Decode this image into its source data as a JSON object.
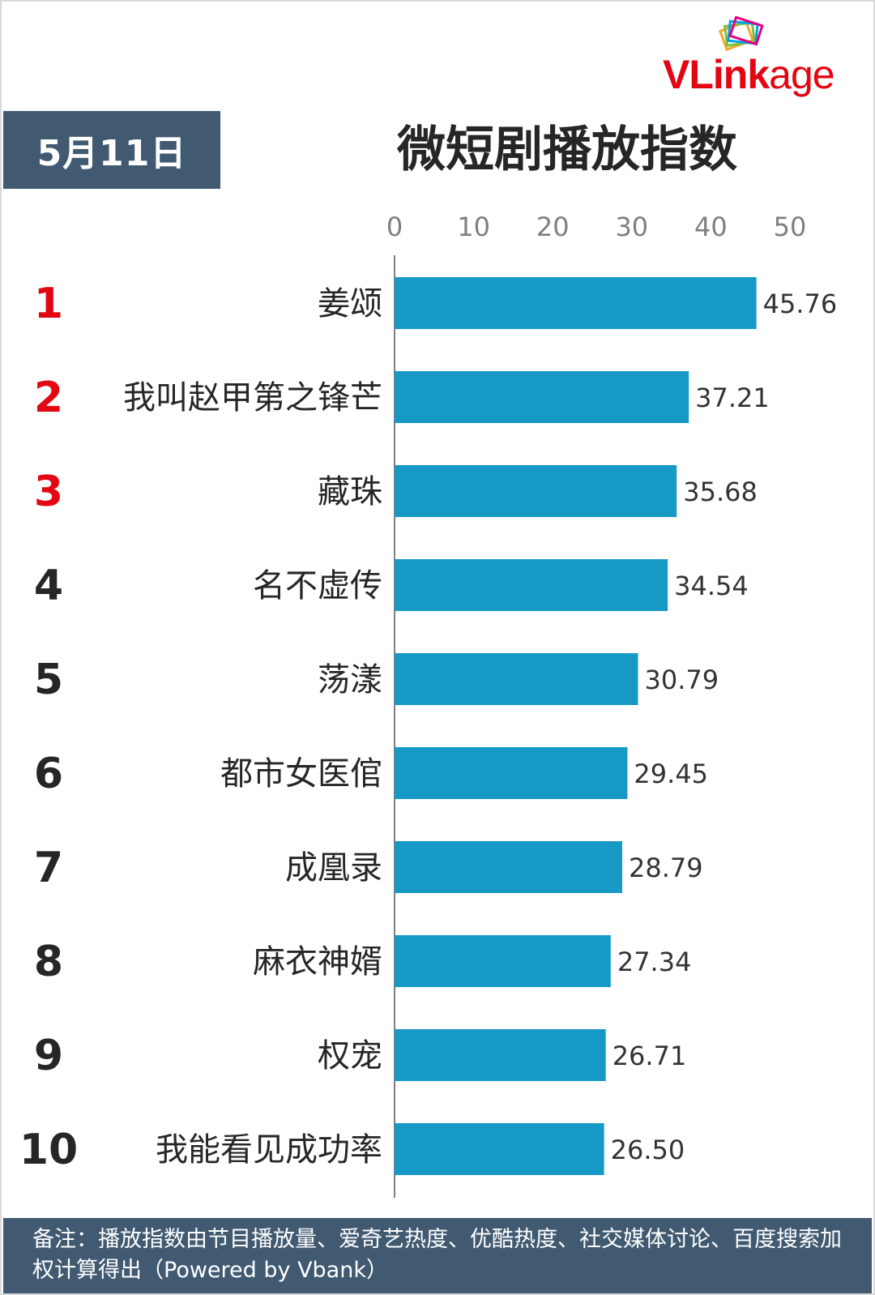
{
  "header": {
    "date_label": "5月11日",
    "title": "微短剧播放指数",
    "logo_text_red": "VLink",
    "logo_text_rest": "age"
  },
  "colors": {
    "bar": "#1799c6",
    "header_bg": "#415a72",
    "rank_top3": "#e30613",
    "rank_other": "#262626"
  },
  "chart_data": {
    "type": "bar",
    "orientation": "horizontal",
    "title": "微短剧播放指数",
    "xlim": [
      0,
      50
    ],
    "ticks": [
      "0",
      "10",
      "20",
      "30",
      "40",
      "50"
    ],
    "ranks": [
      "1",
      "2",
      "3",
      "4",
      "5",
      "6",
      "7",
      "8",
      "9",
      "10"
    ],
    "categories": [
      "姜颂",
      "我叫赵甲第之锋芒",
      "藏珠",
      "名不虚传",
      "荡漾",
      "都市女医倌",
      "成凰录",
      "麻衣神婿",
      "权宠",
      "我能看见成功率"
    ],
    "values": [
      45.76,
      37.21,
      35.68,
      34.54,
      30.79,
      29.45,
      28.79,
      27.34,
      26.71,
      26.5
    ],
    "value_labels": [
      "45.76",
      "37.21",
      "35.68",
      "34.54",
      "30.79",
      "29.45",
      "28.79",
      "27.34",
      "26.71",
      "26.50"
    ]
  },
  "footer": {
    "note": "备注：播放指数由节目播放量、爱奇艺热度、优酷热度、社交媒体讨论、百度搜索加权计算得出（Powered by Vbank）"
  }
}
